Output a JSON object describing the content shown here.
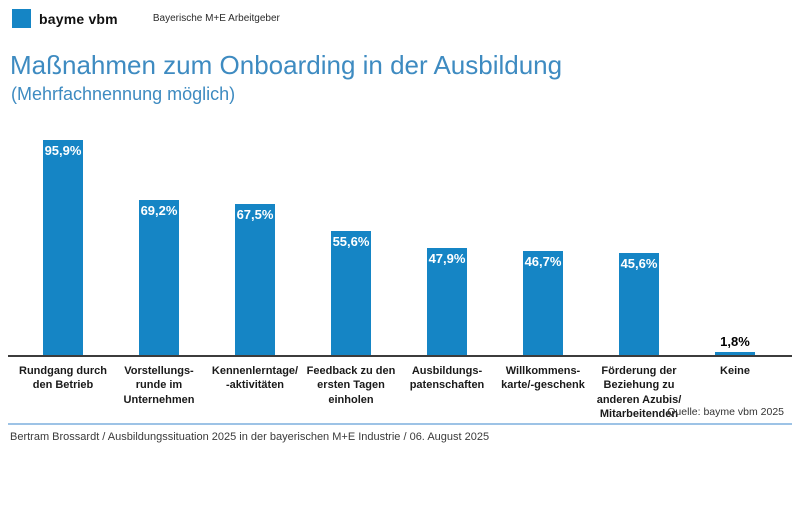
{
  "header": {
    "brand": "bayme vbm",
    "tagline": "Bayerische M+E Arbeitgeber"
  },
  "chart_data": {
    "type": "bar",
    "title": "Maßnahmen zum Onboarding in der Ausbildung",
    "subtitle": "(Mehrfachnennung möglich)",
    "categories": [
      "Rundgang durch\nden Betrieb",
      "Vorstellungs-\nrunde im\nUnternehmen",
      "Kennenlerntage/\n-aktivitäten",
      "Feedback zu den\nersten Tagen\neinholen",
      "Ausbildungs-\npatenschaften",
      "Willkommens-\nkarte/-geschenk",
      "Förderung der\nBeziehung zu\nanderen Azubis/\nMitarbeitenden",
      "Keine"
    ],
    "values": [
      95.9,
      69.2,
      67.5,
      55.6,
      47.9,
      46.7,
      45.6,
      1.8
    ],
    "value_labels": [
      "95,9%",
      "69,2%",
      "67,5%",
      "55,6%",
      "47,9%",
      "46,7%",
      "45,6%",
      "1,8%"
    ],
    "xlabel": "",
    "ylabel": "",
    "ylim": [
      0,
      100
    ],
    "grid": false,
    "legend": null
  },
  "source": "Quelle: bayme vbm 2025",
  "footer": "Bertram Brossardt / Ausbildungssituation 2025 in der bayerischen M+E Industrie / 06. August 2025",
  "colors": {
    "bar": "#1585c5",
    "logo": "#1585c5",
    "title": "#3e8bc1",
    "axis": "#3c3c3c",
    "divider": "#9dc3e6",
    "value_label_inside": "#ffffff",
    "value_label_outside": "#000000"
  }
}
